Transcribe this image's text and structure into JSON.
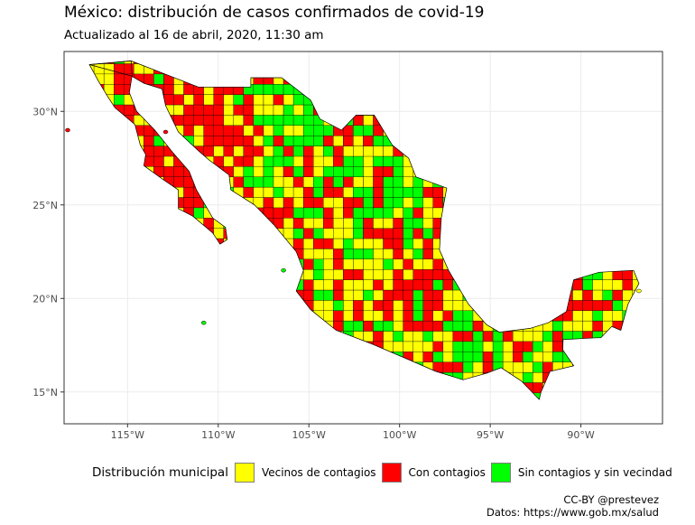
{
  "title": "México: distribución de casos confirmados de covid-19",
  "subtitle": "Actualizado al 16 de abril, 2020, 11:30 am",
  "map": {
    "lon_range": [
      -118.5,
      -85.5
    ],
    "lat_range": [
      13.3,
      33.2
    ],
    "lon_ticks": [
      {
        "value": -115,
        "label": "115°W"
      },
      {
        "value": -110,
        "label": "110°W"
      },
      {
        "value": -105,
        "label": "105°W"
      },
      {
        "value": -100,
        "label": "100°W"
      },
      {
        "value": -95,
        "label": "95°W"
      },
      {
        "value": -90,
        "label": "90°W"
      }
    ],
    "lat_ticks": [
      {
        "value": 30,
        "label": "30°N"
      },
      {
        "value": 25,
        "label": "25°N"
      },
      {
        "value": 20,
        "label": "20°N"
      },
      {
        "value": 15,
        "label": "15°N"
      }
    ],
    "grid": true,
    "colors": {
      "vecinos": "#ffff00",
      "con": "#ff0000",
      "sin": "#00ff00",
      "border": "#000000",
      "gridline": "#ebebeb",
      "panel_border": "#333333"
    }
  },
  "legend": {
    "title": "Distribución municipal",
    "items": [
      {
        "label": "Vecinos de contagios",
        "color": "#ffff00"
      },
      {
        "label": "Con contagios",
        "color": "#ff0000"
      },
      {
        "label": "Sin contagios y sin vecindad",
        "color": "#00ff00"
      }
    ]
  },
  "caption": {
    "line1": "CC-BY @prestevez",
    "line2": "Datos: https://www.gob.mx/salud"
  }
}
